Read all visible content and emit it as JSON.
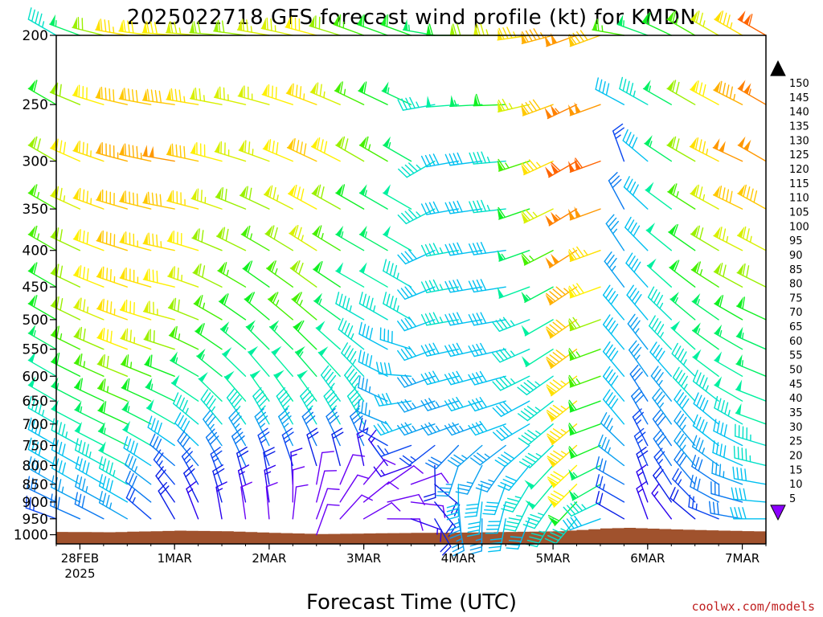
{
  "chart_data": {
    "type": "wind-barb-time-height",
    "title": "2025022718 GFS forecast wind profile (kt) for KMDN",
    "xlabel": "Forecast Time (UTC)",
    "credit": "coolwx.com/models",
    "y_unit": "hPa",
    "y_scale": "log-pressure",
    "ylim": [
      1030,
      200
    ],
    "yticks": [
      200,
      250,
      300,
      350,
      400,
      450,
      500,
      550,
      600,
      650,
      700,
      750,
      800,
      850,
      900,
      950,
      1000
    ],
    "xtick_labels": [
      {
        "t": 6,
        "label": "28FEB",
        "sub": "2025"
      },
      {
        "t": 30,
        "label": "1MAR",
        "sub": ""
      },
      {
        "t": 54,
        "label": "2MAR",
        "sub": ""
      },
      {
        "t": 78,
        "label": "3MAR",
        "sub": ""
      },
      {
        "t": 102,
        "label": "4MAR",
        "sub": ""
      },
      {
        "t": 126,
        "label": "5MAR",
        "sub": ""
      },
      {
        "t": 150,
        "label": "6MAR",
        "sub": ""
      },
      {
        "t": 174,
        "label": "7MAR",
        "sub": ""
      }
    ],
    "x_hours_range": [
      0,
      180
    ],
    "barb_time_step_hours": 6,
    "barb_levels": [
      200,
      250,
      300,
      350,
      400,
      450,
      500,
      550,
      600,
      650,
      700,
      750,
      800,
      850,
      900,
      950,
      1000
    ],
    "surface_pressure_hPa": [
      {
        "t": 0,
        "p": 991
      },
      {
        "t": 12,
        "p": 992
      },
      {
        "t": 30,
        "p": 987
      },
      {
        "t": 42,
        "p": 989
      },
      {
        "t": 54,
        "p": 994
      },
      {
        "t": 66,
        "p": 998
      },
      {
        "t": 78,
        "p": 996
      },
      {
        "t": 90,
        "p": 994
      },
      {
        "t": 102,
        "p": 993
      },
      {
        "t": 114,
        "p": 991
      },
      {
        "t": 126,
        "p": 989
      },
      {
        "t": 138,
        "p": 980
      },
      {
        "t": 144,
        "p": 978
      },
      {
        "t": 156,
        "p": 983
      },
      {
        "t": 168,
        "p": 987
      },
      {
        "t": 180,
        "p": 990
      }
    ],
    "terrain_color": "#a0522d",
    "colorbar": {
      "values": [
        5,
        10,
        15,
        20,
        25,
        30,
        35,
        40,
        45,
        50,
        55,
        60,
        65,
        70,
        75,
        80,
        85,
        90,
        95,
        100,
        105,
        110,
        115,
        120,
        125,
        130,
        135,
        140,
        145,
        150
      ],
      "colors": [
        "#8c00ff",
        "#6a00f5",
        "#2a00ee",
        "#0a1ee6",
        "#0a46f0",
        "#0a78f0",
        "#0aa0f0",
        "#00c0f0",
        "#00e0c8",
        "#00f0a0",
        "#00f064",
        "#10f020",
        "#46f000",
        "#9af000",
        "#d8f000",
        "#fff000",
        "#ffe000",
        "#ffc800",
        "#ffb000",
        "#ff9800",
        "#ff8000",
        "#ff6400",
        "#ff4000",
        "#ff1e00",
        "#ff0020",
        "#ff0050",
        "#ff0080",
        "#ff00a8",
        "#ff00d0",
        "#ff00f0"
      ]
    },
    "wind_key_times": [
      0,
      18,
      30,
      42,
      54,
      66,
      78,
      90,
      96,
      102,
      114,
      126,
      132,
      138,
      144,
      150,
      162,
      174,
      180
    ],
    "wind_key_levels": [
      200,
      300,
      500,
      700,
      850,
      950
    ],
    "wind_speed_kt": [
      [
        45,
        70,
        60,
        45,
        35,
        25
      ],
      [
        85,
        95,
        85,
        60,
        45,
        35
      ],
      [
        80,
        100,
        75,
        50,
        25,
        20
      ],
      [
        70,
        80,
        65,
        45,
        25,
        15
      ],
      [
        75,
        75,
        60,
        45,
        20,
        10
      ],
      [
        80,
        90,
        65,
        45,
        10,
        8
      ],
      [
        65,
        70,
        45,
        45,
        8,
        10
      ],
      [
        60,
        55,
        45,
        40,
        8,
        15
      ],
      [
        55,
        45,
        40,
        35,
        20,
        20
      ],
      [
        60,
        40,
        45,
        35,
        40,
        35
      ],
      [
        75,
        45,
        40,
        40,
        40,
        40
      ],
      [
        95,
        85,
        50,
        45,
        50,
        45
      ],
      [
        100,
        110,
        90,
        85,
        80,
        45
      ],
      [
        90,
        110,
        70,
        60,
        55,
        40
      ],
      [
        65,
        25,
        40,
        40,
        30,
        20
      ],
      [
        55,
        40,
        40,
        30,
        20,
        15
      ],
      [
        65,
        70,
        55,
        40,
        30,
        20
      ],
      [
        85,
        100,
        60,
        45,
        35,
        30
      ],
      [
        110,
        100,
        60,
        50,
        40,
        40
      ]
    ],
    "wind_dir_deg": [
      [
        300,
        300,
        300,
        300,
        300,
        290
      ],
      [
        280,
        285,
        290,
        295,
        300,
        300
      ],
      [
        275,
        280,
        285,
        300,
        320,
        330
      ],
      [
        275,
        285,
        300,
        320,
        340,
        350
      ],
      [
        280,
        290,
        310,
        330,
        350,
        355
      ],
      [
        285,
        295,
        310,
        330,
        10,
        20
      ],
      [
        290,
        300,
        300,
        330,
        40,
        60
      ],
      [
        290,
        300,
        300,
        250,
        70,
        110
      ],
      [
        280,
        240,
        250,
        250,
        130,
        150
      ],
      [
        270,
        260,
        260,
        250,
        180,
        170
      ],
      [
        270,
        265,
        260,
        250,
        200,
        190
      ],
      [
        255,
        245,
        240,
        230,
        220,
        210
      ],
      [
        250,
        240,
        235,
        230,
        225,
        220
      ],
      [
        250,
        250,
        250,
        250,
        240,
        250
      ],
      [
        280,
        340,
        320,
        320,
        300,
        300
      ],
      [
        290,
        310,
        320,
        330,
        340,
        340
      ],
      [
        300,
        300,
        310,
        320,
        320,
        310
      ],
      [
        300,
        295,
        300,
        300,
        290,
        280
      ],
      [
        300,
        300,
        295,
        290,
        280,
        270
      ]
    ]
  }
}
